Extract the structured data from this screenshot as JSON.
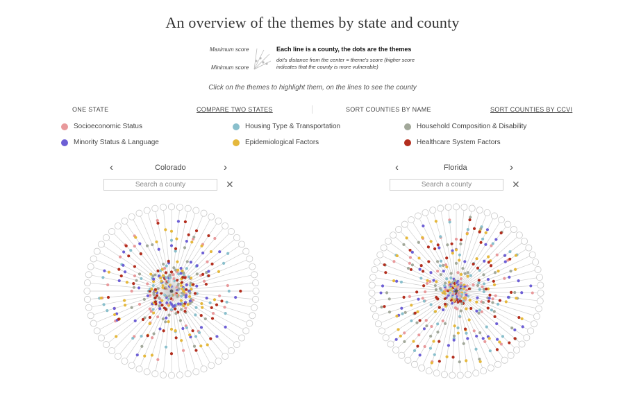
{
  "title": "An overview of the themes by state and county",
  "guide": {
    "max_label": "Maximum score",
    "min_label": "Minimum score",
    "main": "Each line is a county, the dots are the themes",
    "sub": "dot's distance from the center = theme's score (higher score indicates that the county is more vulnerable)"
  },
  "instructions": "Click on the themes to highlight them, on the lines to see the county",
  "options": {
    "one_state": "ONE STATE",
    "compare": "COMPARE TWO STATES",
    "sort_name": "SORT COUNTIES BY NAME",
    "sort_ccvi": "SORT COUNTIES BY CCVI"
  },
  "themes": [
    {
      "label": "Socioeconomic Status",
      "color": "#e8999b"
    },
    {
      "label": "Housing Type & Transportation",
      "color": "#89bfcc"
    },
    {
      "label": "Household Composition & Disability",
      "color": "#a2a89a"
    },
    {
      "label": "Minority Status & Language",
      "color": "#6d5fd5"
    },
    {
      "label": "Epidemiological Factors",
      "color": "#e5b83c"
    },
    {
      "label": "Healthcare System Factors",
      "color": "#b32e1e"
    }
  ],
  "left": {
    "state": "Colorado",
    "placeholder": "Search a county",
    "county_count": 64
  },
  "right": {
    "state": "Florida",
    "placeholder": "Search a county",
    "county_count": 67
  },
  "icons": {
    "prev": "chevron-left-icon",
    "next": "chevron-right-icon",
    "clear": "close-icon"
  }
}
